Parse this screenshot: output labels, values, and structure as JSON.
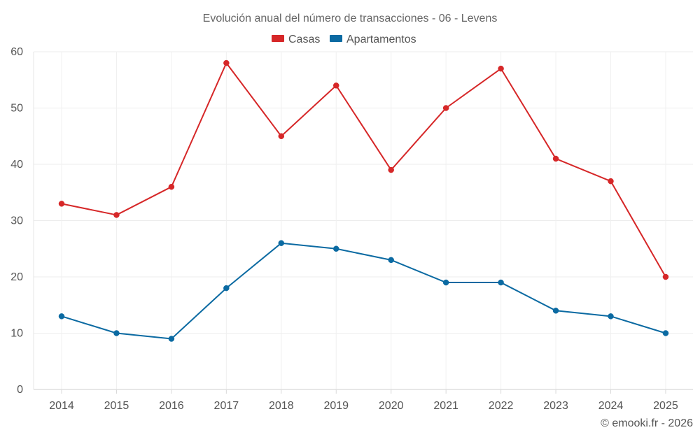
{
  "chart_data": {
    "type": "line",
    "title": "Evolución anual del número de transacciones - 06 - Levens",
    "categories": [
      "2014",
      "2015",
      "2016",
      "2017",
      "2018",
      "2019",
      "2020",
      "2021",
      "2022",
      "2023",
      "2024",
      "2025"
    ],
    "series": [
      {
        "name": "Casas",
        "color": "#d62728",
        "values": [
          33,
          31,
          36,
          58,
          45,
          54,
          39,
          50,
          57,
          41,
          37,
          20
        ]
      },
      {
        "name": "Apartamentos",
        "color": "#0b6aa2",
        "values": [
          13,
          10,
          9,
          18,
          26,
          25,
          23,
          19,
          19,
          14,
          13,
          10
        ]
      }
    ],
    "yticks": [
      0,
      10,
      20,
      30,
      40,
      50,
      60
    ],
    "ylim": [
      0,
      60
    ],
    "grid": true,
    "legend": "top-center",
    "xlabel": "",
    "ylabel": ""
  },
  "credit": "© emooki.fr - 2026"
}
